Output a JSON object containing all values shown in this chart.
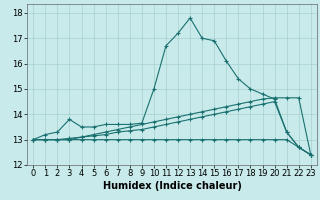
{
  "xlabel": "Humidex (Indice chaleur)",
  "ylabel": "",
  "background_color": "#c8eaea",
  "grid_color": "#a8d0d0",
  "line_color": "#1a7070",
  "xlim": [
    -0.5,
    23.5
  ],
  "ylim": [
    12.0,
    18.35
  ],
  "yticks": [
    12,
    13,
    14,
    15,
    16,
    17,
    18
  ],
  "xticks": [
    0,
    1,
    2,
    3,
    4,
    5,
    6,
    7,
    8,
    9,
    10,
    11,
    12,
    13,
    14,
    15,
    16,
    17,
    18,
    19,
    20,
    21,
    22,
    23
  ],
  "series": [
    [
      13.0,
      13.2,
      13.3,
      13.8,
      13.5,
      13.5,
      13.6,
      13.6,
      13.6,
      13.65,
      15.0,
      16.7,
      17.2,
      17.8,
      17.0,
      16.9,
      16.1,
      15.4,
      15.0,
      14.8,
      14.6,
      13.3,
      12.7,
      12.4
    ],
    [
      13.0,
      13.0,
      13.0,
      13.0,
      13.1,
      13.2,
      13.3,
      13.4,
      13.5,
      13.6,
      13.7,
      13.8,
      13.9,
      14.0,
      14.1,
      14.2,
      14.3,
      14.4,
      14.5,
      14.6,
      14.65,
      14.65,
      14.65,
      12.4
    ],
    [
      13.0,
      13.0,
      13.0,
      13.05,
      13.1,
      13.15,
      13.2,
      13.3,
      13.35,
      13.4,
      13.5,
      13.6,
      13.7,
      13.8,
      13.9,
      14.0,
      14.1,
      14.2,
      14.3,
      14.4,
      14.5,
      13.3,
      12.7,
      12.4
    ],
    [
      13.0,
      13.0,
      13.0,
      13.0,
      13.0,
      13.0,
      13.0,
      13.0,
      13.0,
      13.0,
      13.0,
      13.0,
      13.0,
      13.0,
      13.0,
      13.0,
      13.0,
      13.0,
      13.0,
      13.0,
      13.0,
      13.0,
      12.7,
      12.4
    ]
  ],
  "tick_fontsize": 6,
  "xlabel_fontsize": 7,
  "marker_size": 3,
  "linewidth": 0.8
}
